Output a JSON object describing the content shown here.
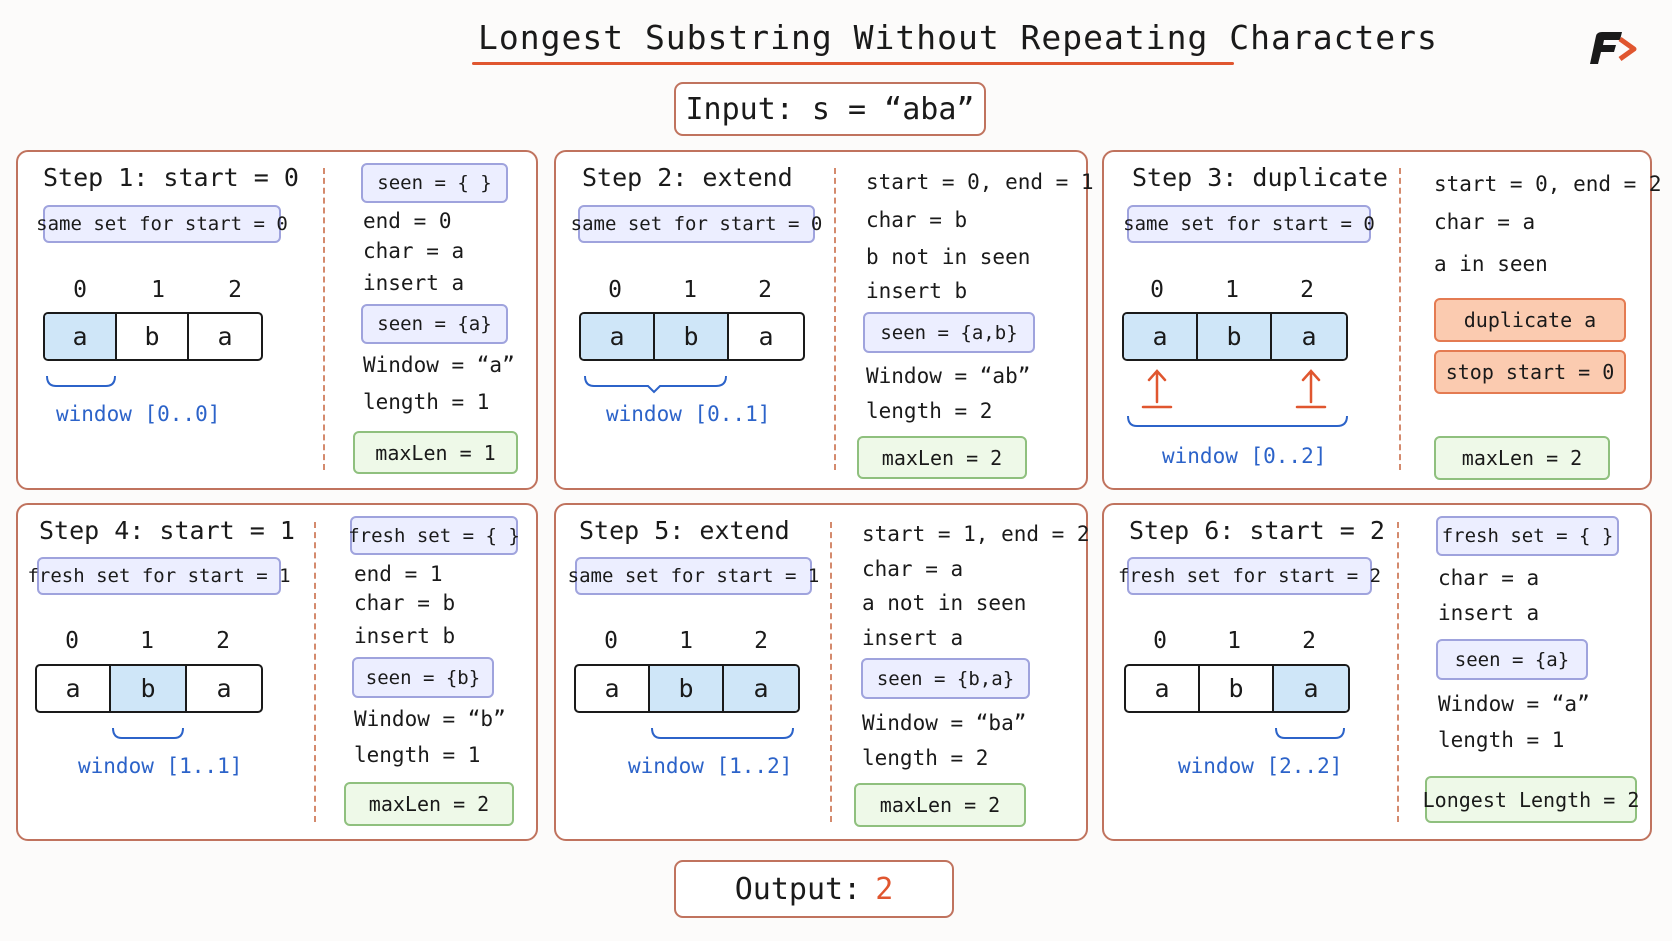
{
  "title": "Longest Substring Without Repeating Characters",
  "input_label": "Input: s = “aba”",
  "output": {
    "label": "Output:",
    "value": "2"
  },
  "colors": {
    "accent": "#e0562f",
    "panel_border": "#c0735e",
    "window_text": "#2c63c9",
    "highlight": "#cfe6f8"
  },
  "indices": [
    "0",
    "1",
    "2"
  ],
  "cells": [
    "a",
    "b",
    "a"
  ],
  "steps": [
    {
      "title": "Step 1: start = 0",
      "pill": "same set for start = 0",
      "window": "window [0..0]",
      "right": {
        "seen_top": "seen = { }",
        "l1": "end = 0",
        "l2": "char = a",
        "l3": "insert a",
        "seen": "seen = {a}",
        "w": "Window = “a”",
        "len": "length = 1",
        "max": "maxLen = 1"
      }
    },
    {
      "title": "Step 2: extend",
      "pill": "same set for start = 0",
      "window": "window [0..1]",
      "right": {
        "l1": "start = 0, end = 1",
        "l2": "char = b",
        "l3": "b not in seen",
        "l4": "insert b",
        "seen": "seen = {a,b}",
        "w": "Window = “ab”",
        "len": "length = 2",
        "max": "maxLen = 2"
      }
    },
    {
      "title": "Step 3: duplicate",
      "pill": "same set for start = 0",
      "window": "window [0..2]",
      "right": {
        "l1": "start = 0, end = 2",
        "l2": "char = a",
        "l3": "a in seen",
        "dup": "duplicate a",
        "stop": "stop start = 0",
        "max": "maxLen = 2"
      }
    },
    {
      "title": "Step 4: start = 1",
      "pill": "fresh set for start = 1",
      "window": "window [1..1]",
      "right": {
        "seen_top": "fresh set = { }",
        "l1": "end = 1",
        "l2": "char = b",
        "l3": "insert b",
        "seen": "seen = {b}",
        "w": "Window = “b”",
        "len": "length = 1",
        "max": "maxLen = 2"
      }
    },
    {
      "title": "Step 5: extend",
      "pill": "same set for start = 1",
      "window": "window [1..2]",
      "right": {
        "l1": "start = 1, end = 2",
        "l2": "char = a",
        "l3": "a not in seen",
        "l4": "insert a",
        "seen": "seen = {b,a}",
        "w": "Window = “ba”",
        "len": "length = 2",
        "max": "maxLen = 2"
      }
    },
    {
      "title": "Step 6: start = 2",
      "pill": "fresh set for start = 2",
      "window": "window [2..2]",
      "right": {
        "seen_top": "fresh set = { }",
        "l2": "char = a",
        "l3": "insert a",
        "seen": "seen = {a}",
        "w": "Window = “a”",
        "len": "length = 1",
        "max": "Longest Length = 2"
      }
    }
  ]
}
